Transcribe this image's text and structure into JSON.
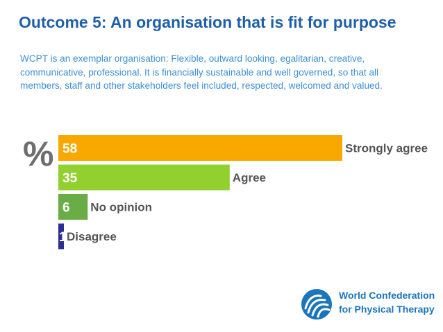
{
  "title": "Outcome 5: An organisation that is fit for purpose",
  "description": "WCPT is an exemplar organisation: Flexible, outward looking, egalitarian, creative, communicative, professional. It is financially sustainable and well governed, so that all members, staff and other stakeholders feel included, respected, welcomed and valued.",
  "chart_data": {
    "type": "bar",
    "orientation": "horizontal",
    "unit_label": "%",
    "categories": [
      "Strongly agree",
      "Agree",
      "No opinion",
      "Disagree"
    ],
    "values": [
      58,
      35,
      6,
      1
    ],
    "colors": [
      "#f9a800",
      "#92d030",
      "#6aad46",
      "#2b2f8f"
    ],
    "xlim": [
      0,
      58
    ],
    "grid": false,
    "legend": "none"
  },
  "logo": {
    "line1": "World Confederation",
    "line2": "for Physical Therapy",
    "color": "#1a75bb"
  },
  "colors": {
    "title": "#1f5fa8",
    "description": "#3b8fd3",
    "category_label": "#555555",
    "percent_symbol": "#6e6e6e"
  }
}
